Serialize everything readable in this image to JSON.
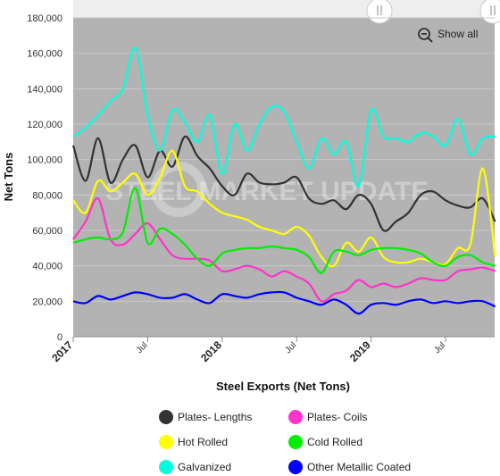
{
  "chart_data": {
    "type": "line",
    "title": "",
    "xlabel": "Steel Exports (Net Tons)",
    "ylabel": "Net Tons",
    "ylim": [
      0,
      180000
    ],
    "yticks": [
      0,
      20000,
      40000,
      60000,
      80000,
      100000,
      120000,
      140000,
      160000,
      180000
    ],
    "ytick_labels": [
      "0",
      "20,000",
      "40,000",
      "60,000",
      "80,000",
      "100,000",
      "120,000",
      "140,000",
      "160,000",
      "180,000"
    ],
    "x_range": [
      "2017-01",
      "2019-11"
    ],
    "xticks": [
      {
        "label": "2017",
        "month": 0,
        "major": true
      },
      {
        "label": "Jul",
        "month": 6,
        "major": false
      },
      {
        "label": "2018",
        "month": 12,
        "major": true
      },
      {
        "label": "Jul",
        "month": 18,
        "major": false
      },
      {
        "label": "2019",
        "month": 24,
        "major": true
      },
      {
        "label": "Jul",
        "month": 30,
        "major": false
      }
    ],
    "plot_background": "#b3b3b3",
    "grid": true,
    "legend_position": "bottom",
    "x": [
      "2017-01",
      "2017-02",
      "2017-03",
      "2017-04",
      "2017-05",
      "2017-06",
      "2017-07",
      "2017-08",
      "2017-09",
      "2017-10",
      "2017-11",
      "2017-12",
      "2018-01",
      "2018-02",
      "2018-03",
      "2018-04",
      "2018-05",
      "2018-06",
      "2018-07",
      "2018-08",
      "2018-09",
      "2018-10",
      "2018-11",
      "2018-12",
      "2019-01",
      "2019-02",
      "2019-03",
      "2019-04",
      "2019-05",
      "2019-06",
      "2019-07",
      "2019-08",
      "2019-09",
      "2019-10",
      "2019-11"
    ],
    "series": [
      {
        "name": "Plates- Lengths",
        "color": "#333333",
        "values": [
          108000,
          88000,
          112000,
          87000,
          100000,
          108000,
          90000,
          105000,
          96000,
          113000,
          102000,
          95000,
          85000,
          80000,
          92000,
          87000,
          86000,
          87000,
          90000,
          78000,
          75000,
          77000,
          72000,
          80000,
          75000,
          60000,
          65000,
          70000,
          80000,
          82000,
          77000,
          74000,
          73000,
          78000,
          65000
        ]
      },
      {
        "name": "Plates- Coils",
        "color": "#ff33cc",
        "values": [
          55000,
          65000,
          78000,
          55000,
          52000,
          58000,
          64000,
          55000,
          46000,
          44000,
          44000,
          43000,
          37000,
          38000,
          40000,
          38000,
          34000,
          37000,
          34000,
          30000,
          20000,
          24000,
          26000,
          32000,
          28000,
          30000,
          28000,
          30000,
          33000,
          32000,
          32000,
          37000,
          38000,
          39000,
          37000
        ]
      },
      {
        "name": "Hot Rolled",
        "color": "#ffff00",
        "values": [
          77000,
          70000,
          88000,
          82000,
          87000,
          92000,
          80000,
          90000,
          105000,
          85000,
          82000,
          75000,
          70000,
          68000,
          66000,
          62000,
          60000,
          58000,
          62000,
          57000,
          45000,
          40000,
          53000,
          48000,
          56000,
          45000,
          42000,
          42000,
          44000,
          42000,
          41000,
          50000,
          52000,
          95000,
          45000
        ]
      },
      {
        "name": "Cold Rolled",
        "color": "#00ee00",
        "values": [
          53000,
          55000,
          56000,
          55000,
          59000,
          84000,
          53000,
          61000,
          58000,
          52000,
          44000,
          40000,
          47000,
          49000,
          50000,
          50000,
          51000,
          50000,
          49000,
          45000,
          36000,
          48000,
          48000,
          46000,
          49000,
          50000,
          50000,
          49000,
          47000,
          42000,
          40000,
          45000,
          46000,
          42000,
          40000
        ]
      },
      {
        "name": "Galvanized",
        "color": "#00ffdd",
        "values": [
          113000,
          118000,
          125000,
          133000,
          140000,
          163000,
          125000,
          105000,
          128000,
          121000,
          110000,
          125000,
          92000,
          120000,
          105000,
          120000,
          130000,
          127000,
          110000,
          95000,
          112000,
          103000,
          110000,
          85000,
          128000,
          113000,
          112000,
          110000,
          115000,
          113000,
          108000,
          123000,
          103000,
          112000,
          113000
        ]
      },
      {
        "name": "Other Metallic Coated",
        "color": "#0000ff",
        "values": [
          20000,
          19000,
          23000,
          21000,
          23000,
          25000,
          24000,
          22000,
          22000,
          24000,
          21000,
          19000,
          24000,
          23000,
          22000,
          24000,
          25000,
          25000,
          22000,
          20000,
          18000,
          21000,
          18000,
          13000,
          18000,
          19000,
          18000,
          20000,
          21000,
          19000,
          20000,
          19000,
          20000,
          20000,
          17000
        ]
      }
    ],
    "watermark": "STEEL MARKET UPDATE"
  },
  "controls": {
    "show_all_label": "Show all",
    "zoom_icon": "zoom-out-icon",
    "scrollbar_left_handle_icon": "grip-lines-icon",
    "scrollbar_right_handle_icon": "grip-lines-icon"
  }
}
